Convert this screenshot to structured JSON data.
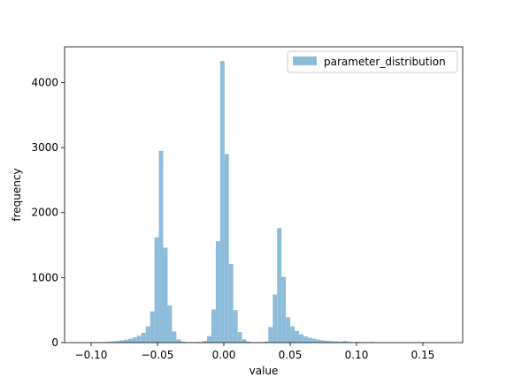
{
  "chart_data": {
    "type": "bar",
    "title": "",
    "xlabel": "value",
    "ylabel": "frequency",
    "xlim": [
      -0.12,
      0.18
    ],
    "ylim": [
      0,
      4550
    ],
    "xticks": [
      -0.1,
      -0.05,
      0.0,
      0.05,
      0.1,
      0.15
    ],
    "xtick_labels": [
      "−0.10",
      "−0.05",
      "0.00",
      "0.05",
      "0.10",
      "0.15"
    ],
    "yticks": [
      0,
      1000,
      2000,
      3000,
      4000
    ],
    "ytick_labels": [
      "0",
      "1000",
      "2000",
      "3000",
      "4000"
    ],
    "grid": false,
    "legend_position": "top-right",
    "bar_color": "#8ebcdb",
    "series": [
      {
        "name": "parameter_distribution",
        "bin_width": 0.0033,
        "bins": [
          [
            -0.0935,
            5
          ],
          [
            -0.0902,
            8
          ],
          [
            -0.0869,
            12
          ],
          [
            -0.0836,
            18
          ],
          [
            -0.0803,
            25
          ],
          [
            -0.077,
            32
          ],
          [
            -0.0737,
            45
          ],
          [
            -0.0704,
            60
          ],
          [
            -0.0671,
            80
          ],
          [
            -0.0638,
            105
          ],
          [
            -0.0605,
            150
          ],
          [
            -0.0572,
            250
          ],
          [
            -0.0539,
            480
          ],
          [
            -0.0506,
            1620
          ],
          [
            -0.0473,
            2950
          ],
          [
            -0.044,
            1460
          ],
          [
            -0.0407,
            570
          ],
          [
            -0.0374,
            170
          ],
          [
            -0.0341,
            50
          ],
          [
            -0.0308,
            15
          ],
          [
            -0.0275,
            5
          ],
          [
            -0.0242,
            2
          ],
          [
            -0.0209,
            5
          ],
          [
            -0.0176,
            10
          ],
          [
            -0.0143,
            25
          ],
          [
            -0.011,
            100
          ],
          [
            -0.0077,
            510
          ],
          [
            -0.0044,
            1560
          ],
          [
            -0.0011,
            4330
          ],
          [
            0.0022,
            2900
          ],
          [
            0.0055,
            1210
          ],
          [
            0.0088,
            500
          ],
          [
            0.0121,
            160
          ],
          [
            0.0154,
            50
          ],
          [
            0.0187,
            15
          ],
          [
            0.022,
            5
          ],
          [
            0.0253,
            3
          ],
          [
            0.0286,
            5
          ],
          [
            0.0319,
            15
          ],
          [
            0.0352,
            240
          ],
          [
            0.0385,
            740
          ],
          [
            0.0418,
            1760
          ],
          [
            0.0451,
            1010
          ],
          [
            0.0484,
            390
          ],
          [
            0.0517,
            250
          ],
          [
            0.055,
            180
          ],
          [
            0.0583,
            130
          ],
          [
            0.0616,
            95
          ],
          [
            0.0649,
            75
          ],
          [
            0.0682,
            60
          ],
          [
            0.0715,
            45
          ],
          [
            0.0748,
            35
          ],
          [
            0.0781,
            28
          ],
          [
            0.0814,
            22
          ],
          [
            0.0847,
            18
          ],
          [
            0.088,
            15
          ],
          [
            0.0913,
            25
          ],
          [
            0.0946,
            10
          ],
          [
            0.0979,
            8
          ],
          [
            0.1012,
            12
          ],
          [
            0.1045,
            6
          ],
          [
            0.1078,
            5
          ],
          [
            0.1111,
            10
          ],
          [
            0.1144,
            4
          ],
          [
            0.1177,
            3
          ],
          [
            0.121,
            2
          ],
          [
            0.1243,
            3
          ],
          [
            0.1276,
            2
          ],
          [
            0.1309,
            1
          ],
          [
            0.1342,
            2
          ],
          [
            0.1375,
            1
          ],
          [
            0.1408,
            1
          ],
          [
            0.1441,
            1
          ],
          [
            0.1474,
            1
          ],
          [
            0.1507,
            1
          ],
          [
            0.154,
            1
          ],
          [
            0.1573,
            1
          ]
        ]
      }
    ]
  }
}
